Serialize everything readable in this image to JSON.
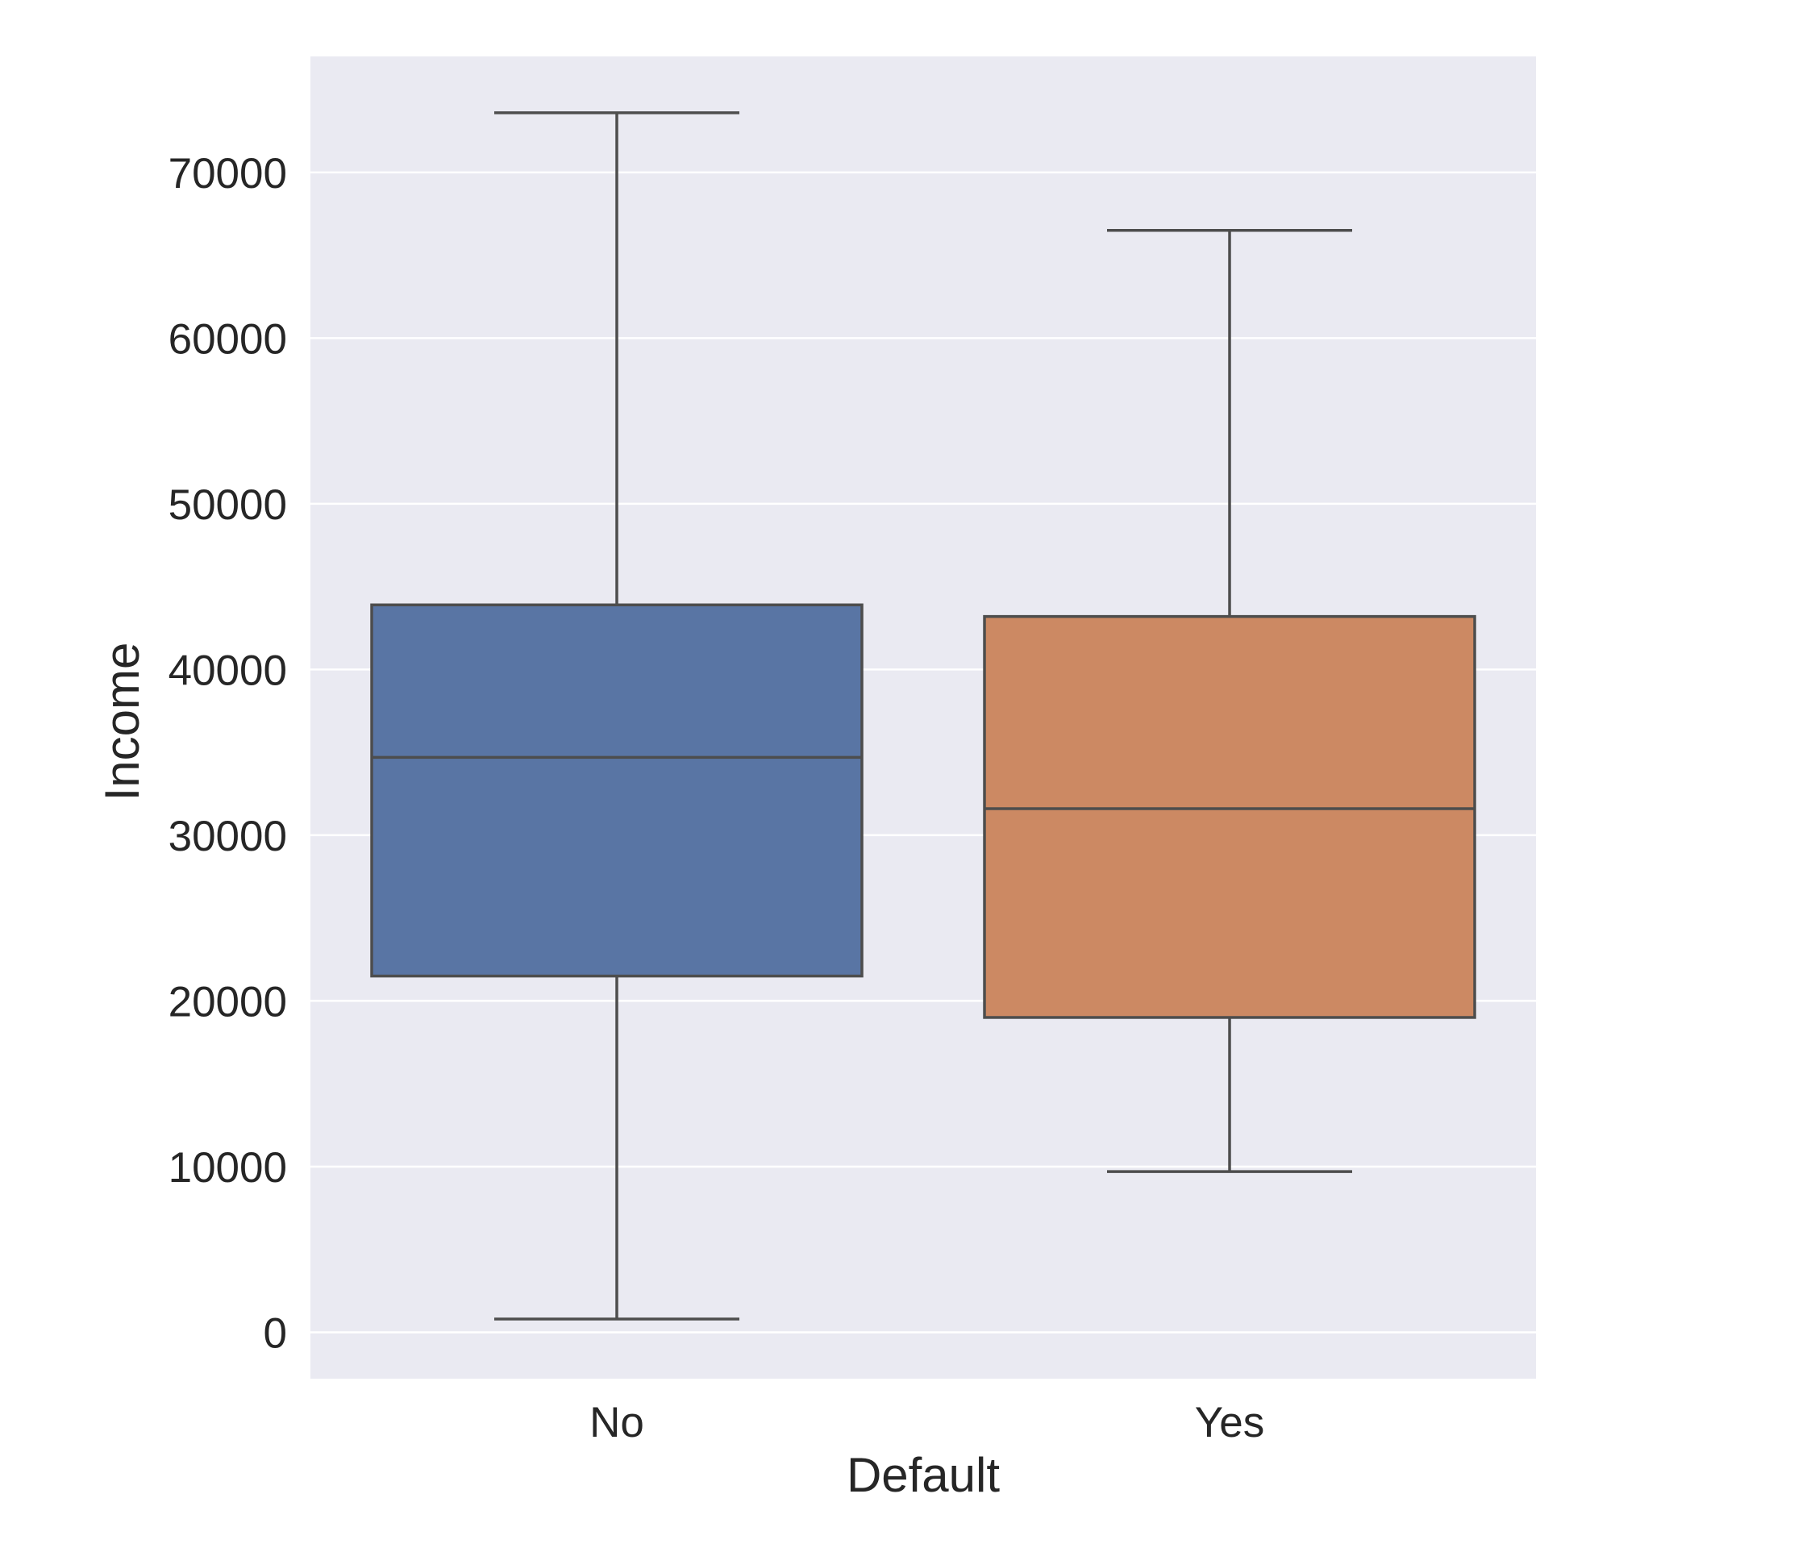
{
  "chart_data": {
    "type": "box",
    "title": "",
    "xlabel": "Default",
    "ylabel": "Income",
    "categories": [
      "No",
      "Yes"
    ],
    "ylim": [
      -2800,
      77000
    ],
    "yticks": [
      0,
      10000,
      20000,
      30000,
      40000,
      50000,
      60000,
      70000
    ],
    "ytick_labels": [
      "0",
      "10000",
      "20000",
      "30000",
      "40000",
      "50000",
      "60000",
      "70000"
    ],
    "grid": true,
    "legend": "none",
    "boxes": [
      {
        "category": "No",
        "whisker_low": 800,
        "q1": 21500,
        "median": 34700,
        "q3": 43900,
        "whisker_high": 73600,
        "color": "#5975a4"
      },
      {
        "category": "Yes",
        "whisker_low": 9700,
        "q1": 19000,
        "median": 31600,
        "q3": 43200,
        "whisker_high": 66500,
        "color": "#cc8963"
      }
    ],
    "colors": {
      "plot_background": "#eaeaf2",
      "grid": "#ffffff",
      "box_edge": "#4d4d4d",
      "text": "#262626"
    }
  }
}
